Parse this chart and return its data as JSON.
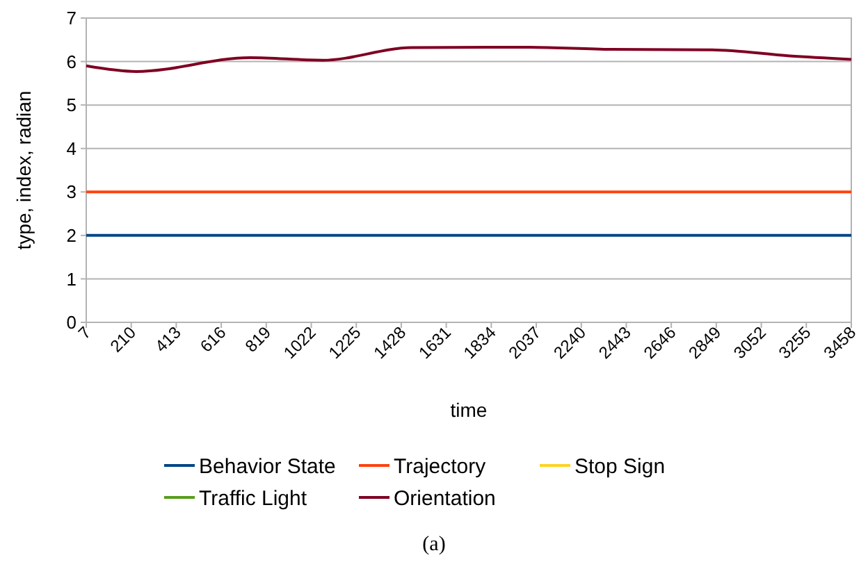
{
  "chart_data": {
    "type": "line",
    "xlabel": "time",
    "ylabel": "type, index, radian",
    "annotations": [
      "(a)"
    ],
    "xlim": [
      7,
      3458
    ],
    "xticks": [
      7,
      210,
      413,
      616,
      819,
      1022,
      1225,
      1428,
      1631,
      1834,
      2037,
      2240,
      2443,
      2646,
      2849,
      3052,
      3255,
      3458
    ],
    "ylim": [
      0,
      7
    ],
    "yticks": [
      0,
      1,
      2,
      3,
      4,
      5,
      6,
      7
    ],
    "grid": "y",
    "legend": "bottom",
    "marker": "none",
    "line_style": "solid",
    "series": [
      {
        "name": "Behavior State",
        "color": "#004586",
        "x": [
          7,
          3458
        ],
        "values": [
          2,
          2
        ]
      },
      {
        "name": "Trajectory",
        "color": "#ff420e",
        "x": [
          7,
          3458
        ],
        "values": [
          3,
          3
        ]
      },
      {
        "name": "Stop Sign",
        "color": "#ffd320"
      },
      {
        "name": "Traffic Light",
        "color": "#579d1c"
      },
      {
        "name": "Orientation",
        "color": "#7e0021",
        "x": [
          7,
          233,
          747,
          1073,
          1474,
          2001,
          2377,
          2829,
          3180,
          3458
        ],
        "values": [
          5.9,
          5.77,
          6.09,
          6.03,
          6.32,
          6.33,
          6.28,
          6.27,
          6.13,
          6.05
        ]
      }
    ]
  }
}
